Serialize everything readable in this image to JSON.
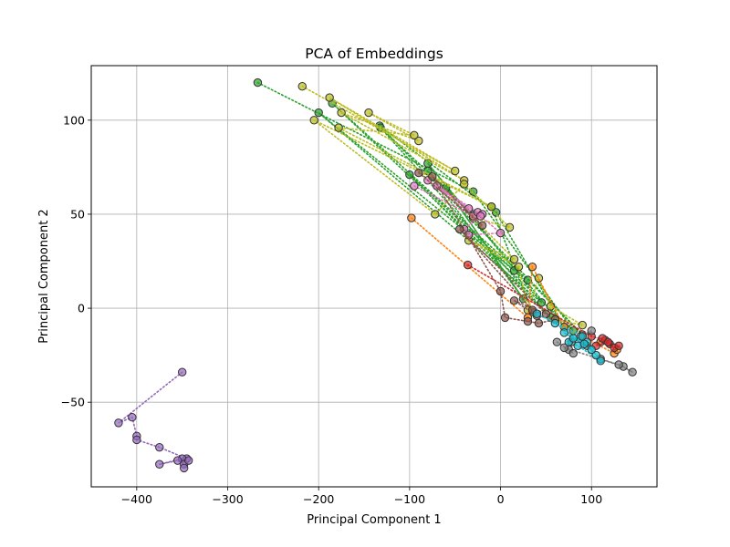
{
  "chart_data": {
    "type": "scatter",
    "title": "PCA of Embeddings",
    "xlabel": "Principal Component 1",
    "ylabel": "Principal Component 2",
    "xlim": [
      -450,
      172
    ],
    "ylim": [
      -95,
      129
    ],
    "xticks": [
      -400,
      -300,
      -200,
      -100,
      0,
      100
    ],
    "yticks": [
      -50,
      0,
      50,
      100
    ],
    "xtick_labels": [
      "−400",
      "−300",
      "−200",
      "−100",
      "0",
      "100"
    ],
    "ytick_labels": [
      "−50",
      "0",
      "50",
      "100"
    ],
    "grid": true,
    "marker": "circle, dark edge, semi-transparent fill",
    "connectors": "dotted lines joining consecutive points of each series",
    "series": [
      {
        "color": "#2ca02c",
        "points": [
          [
            -267,
            120
          ],
          [
            -30,
            62
          ],
          [
            80,
            -12
          ],
          [
            -185,
            109
          ],
          [
            30,
            15
          ],
          [
            90,
            -14
          ],
          [
            -133,
            97
          ],
          [
            -5,
            51
          ],
          [
            70,
            -10
          ],
          [
            -80,
            77
          ],
          [
            45,
            3
          ],
          [
            -200,
            104
          ],
          [
            15,
            20
          ],
          [
            -100,
            71
          ],
          [
            55,
            -5
          ],
          [
            -132,
            96
          ],
          [
            -30,
            50
          ],
          [
            -80,
            73
          ],
          [
            25,
            5
          ],
          [
            -60,
            64
          ],
          [
            35,
            -2
          ],
          [
            -10,
            54
          ]
        ]
      },
      {
        "color": "#bcbd22",
        "points": [
          [
            -218,
            118
          ],
          [
            -50,
            73
          ],
          [
            -188,
            112
          ],
          [
            -40,
            68
          ],
          [
            -175,
            104
          ],
          [
            -90,
            89
          ],
          [
            -145,
            104
          ],
          [
            -95,
            92
          ],
          [
            -178,
            96
          ],
          [
            -10,
            54
          ],
          [
            -205,
            100
          ],
          [
            -72,
            50
          ],
          [
            -40,
            66
          ],
          [
            10,
            43
          ],
          [
            -30,
            48
          ],
          [
            15,
            26
          ],
          [
            -35,
            36
          ],
          [
            20,
            22
          ],
          [
            30,
            -1
          ],
          [
            42,
            16
          ],
          [
            55,
            1
          ],
          [
            90,
            -9
          ],
          [
            60,
            -6
          ]
        ]
      },
      {
        "color": "#e377c2",
        "points": [
          [
            -95,
            65
          ],
          [
            -30,
            49
          ],
          [
            -80,
            68
          ],
          [
            -35,
            53
          ],
          [
            -70,
            65
          ],
          [
            -25,
            51
          ],
          [
            -20,
            50
          ],
          [
            -40,
            42
          ],
          [
            -22,
            49
          ],
          [
            0,
            40
          ],
          [
            -35,
            39
          ]
        ]
      },
      {
        "color": "#ff7f0e",
        "points": [
          [
            -98,
            48
          ],
          [
            30,
            -5
          ],
          [
            35,
            22
          ],
          [
            70,
            -10
          ],
          [
            125,
            -24
          ],
          [
            128,
            -22
          ],
          [
            110,
            -18
          ]
        ]
      },
      {
        "color": "#d62728",
        "points": [
          [
            -36,
            23
          ],
          [
            100,
            -15
          ],
          [
            115,
            -17
          ],
          [
            120,
            -19
          ],
          [
            125,
            -21
          ],
          [
            130,
            -20
          ],
          [
            118,
            -18
          ],
          [
            105,
            -20
          ],
          [
            112,
            -16
          ]
        ]
      },
      {
        "color": "#8c564b",
        "points": [
          [
            -90,
            72
          ],
          [
            -20,
            44
          ],
          [
            -75,
            70
          ],
          [
            0,
            9
          ],
          [
            5,
            -5
          ],
          [
            30,
            -7
          ],
          [
            42,
            -8
          ],
          [
            60,
            -6
          ],
          [
            40,
            -4
          ],
          [
            15,
            4
          ],
          [
            50,
            -3
          ],
          [
            -45,
            42
          ],
          [
            35,
            -1
          ]
        ]
      },
      {
        "color": "#7f7f7f",
        "points": [
          [
            62,
            -18
          ],
          [
            75,
            -22
          ],
          [
            80,
            -24
          ],
          [
            70,
            -21
          ],
          [
            135,
            -31
          ],
          [
            145,
            -34
          ],
          [
            130,
            -30
          ],
          [
            110,
            -27
          ],
          [
            95,
            -20
          ],
          [
            88,
            -15
          ],
          [
            100,
            -12
          ],
          [
            78,
            -18
          ]
        ]
      },
      {
        "color": "#17becf",
        "points": [
          [
            40,
            -3
          ],
          [
            90,
            -15
          ],
          [
            75,
            -18
          ],
          [
            85,
            -20
          ],
          [
            110,
            -28
          ],
          [
            105,
            -25
          ],
          [
            95,
            -18
          ],
          [
            80,
            -16
          ],
          [
            100,
            -22
          ],
          [
            70,
            -13
          ],
          [
            92,
            -19
          ],
          [
            60,
            -8
          ]
        ]
      },
      {
        "color": "#9467bd",
        "points": [
          [
            -350,
            -34
          ],
          [
            -420,
            -61
          ],
          [
            -405,
            -58
          ],
          [
            -400,
            -68
          ],
          [
            -400,
            -70
          ],
          [
            -375,
            -74
          ],
          [
            -345,
            -80
          ],
          [
            -375,
            -83
          ],
          [
            -350,
            -80
          ],
          [
            -355,
            -81
          ],
          [
            -348,
            -83
          ],
          [
            -348,
            -85
          ],
          [
            -343,
            -81
          ]
        ]
      }
    ]
  }
}
